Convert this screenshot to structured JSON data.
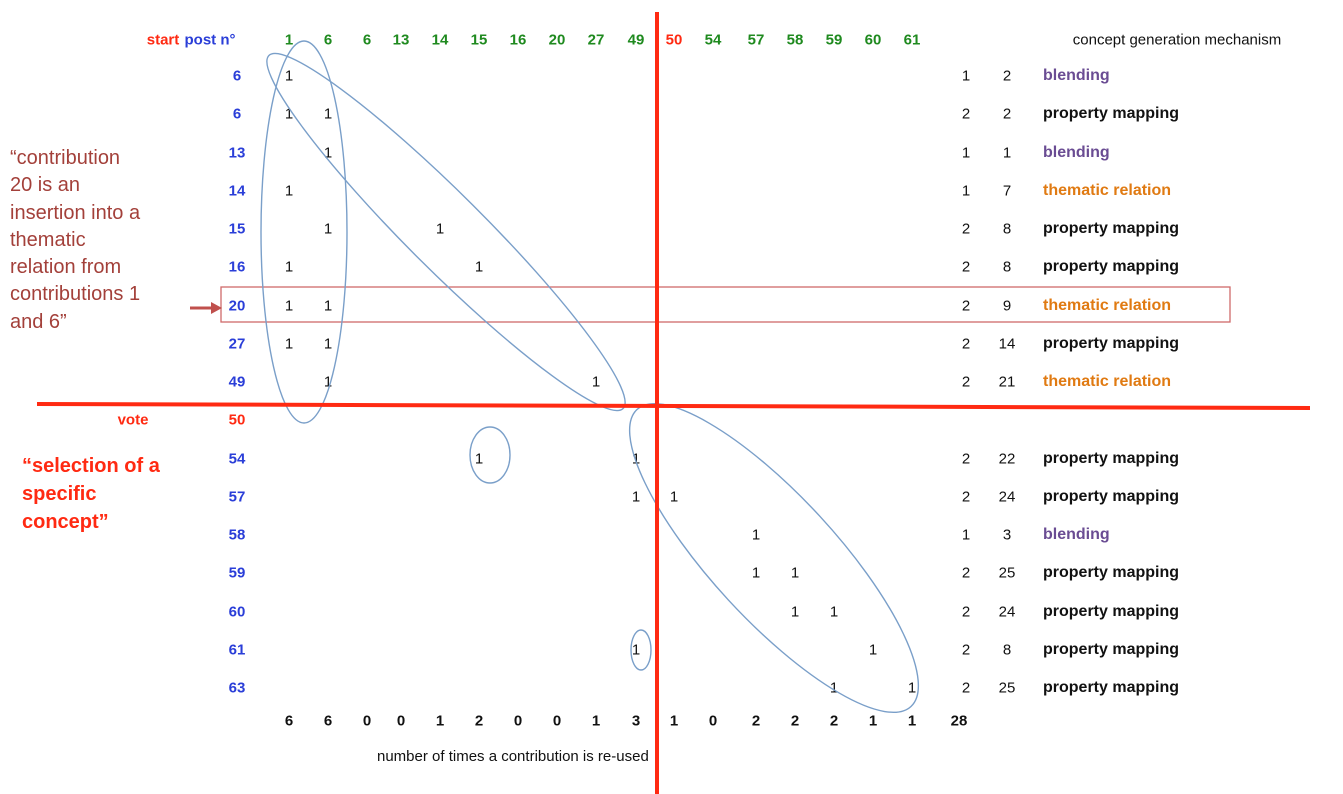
{
  "colors": {
    "red": "#ff2a12",
    "blue": "#2a3ed8",
    "green": "#1f8a1f",
    "purple": "#6a4c93",
    "orange": "#e07a12",
    "black": "#111111",
    "annotation": "#a3403a",
    "ellipse": "#7a9fc9"
  },
  "header": {
    "start_label": "start",
    "post_label": "post n°",
    "mechanism_label": "concept generation mechanism",
    "columns": [
      {
        "label": "1",
        "color": "green"
      },
      {
        "label": "6",
        "color": "green"
      },
      {
        "label": "6",
        "color": "green"
      },
      {
        "label": "13",
        "color": "green"
      },
      {
        "label": "14",
        "color": "green"
      },
      {
        "label": "15",
        "color": "green"
      },
      {
        "label": "16",
        "color": "green"
      },
      {
        "label": "20",
        "color": "green"
      },
      {
        "label": "27",
        "color": "green"
      },
      {
        "label": "49",
        "color": "green"
      },
      {
        "label": "50",
        "color": "red"
      },
      {
        "label": "54",
        "color": "green"
      },
      {
        "label": "57",
        "color": "green"
      },
      {
        "label": "58",
        "color": "green"
      },
      {
        "label": "59",
        "color": "green"
      },
      {
        "label": "60",
        "color": "green"
      },
      {
        "label": "61",
        "color": "green"
      }
    ]
  },
  "rows": [
    {
      "post": "6",
      "post_color": "blue",
      "ones": [
        0
      ],
      "a": "1",
      "b": "2",
      "mechanism": "blending",
      "mech_color": "purple"
    },
    {
      "post": "6",
      "post_color": "blue",
      "ones": [
        0,
        1
      ],
      "a": "2",
      "b": "2",
      "mechanism": "property mapping",
      "mech_color": "black"
    },
    {
      "post": "13",
      "post_color": "blue",
      "ones": [
        1
      ],
      "a": "1",
      "b": "1",
      "mechanism": "blending",
      "mech_color": "purple"
    },
    {
      "post": "14",
      "post_color": "blue",
      "ones": [
        0
      ],
      "a": "1",
      "b": "7",
      "mechanism": "thematic relation",
      "mech_color": "orange"
    },
    {
      "post": "15",
      "post_color": "blue",
      "ones": [
        1,
        4
      ],
      "a": "2",
      "b": "8",
      "mechanism": "property mapping",
      "mech_color": "black"
    },
    {
      "post": "16",
      "post_color": "blue",
      "ones": [
        0,
        5
      ],
      "a": "2",
      "b": "8",
      "mechanism": "property mapping",
      "mech_color": "black"
    },
    {
      "post": "20",
      "post_color": "blue",
      "ones": [
        0,
        1
      ],
      "a": "2",
      "b": "9",
      "mechanism": "thematic relation",
      "mech_color": "orange"
    },
    {
      "post": "27",
      "post_color": "blue",
      "ones": [
        0,
        1
      ],
      "a": "2",
      "b": "14",
      "mechanism": "property mapping",
      "mech_color": "black"
    },
    {
      "post": "49",
      "post_color": "blue",
      "ones": [
        1,
        8
      ],
      "a": "2",
      "b": "21",
      "mechanism": "thematic relation",
      "mech_color": "orange"
    },
    {
      "post": "50",
      "post_color": "red",
      "ones": [],
      "a": "",
      "b": "",
      "mechanism": "",
      "mech_color": "black",
      "row_label": "vote"
    },
    {
      "post": "54",
      "post_color": "blue",
      "ones": [
        5,
        9
      ],
      "a": "2",
      "b": "22",
      "mechanism": "property mapping",
      "mech_color": "black"
    },
    {
      "post": "57",
      "post_color": "blue",
      "ones": [
        9,
        10
      ],
      "a": "2",
      "b": "24",
      "mechanism": "property mapping",
      "mech_color": "black"
    },
    {
      "post": "58",
      "post_color": "blue",
      "ones": [
        12
      ],
      "a": "1",
      "b": "3",
      "mechanism": "blending",
      "mech_color": "purple"
    },
    {
      "post": "59",
      "post_color": "blue",
      "ones": [
        12,
        13
      ],
      "a": "2",
      "b": "25",
      "mechanism": "property mapping",
      "mech_color": "black"
    },
    {
      "post": "60",
      "post_color": "blue",
      "ones": [
        13,
        14
      ],
      "a": "2",
      "b": "24",
      "mechanism": "property mapping",
      "mech_color": "black"
    },
    {
      "post": "61",
      "post_color": "blue",
      "ones": [
        9,
        15
      ],
      "a": "2",
      "b": "8",
      "mechanism": "property mapping",
      "mech_color": "black"
    },
    {
      "post": "63",
      "post_color": "blue",
      "ones": [
        14,
        16
      ],
      "a": "2",
      "b": "25",
      "mechanism": "property mapping",
      "mech_color": "black"
    }
  ],
  "totals": [
    "6",
    "6",
    "0",
    "0",
    "1",
    "2",
    "0",
    "0",
    "1",
    "3",
    "1",
    "0",
    "2",
    "2",
    "2",
    "1",
    "1"
  ],
  "grand_total": "28",
  "footer_caption": "number of times a contribution is re-used",
  "annotations": {
    "left_quote_lines": [
      "“contribution",
      "20 is an",
      "insertion into a",
      "thematic",
      "relation from",
      "contributions 1",
      "and 6”"
    ],
    "selection_lines": [
      "“selection of a",
      "specific",
      "concept”"
    ]
  }
}
